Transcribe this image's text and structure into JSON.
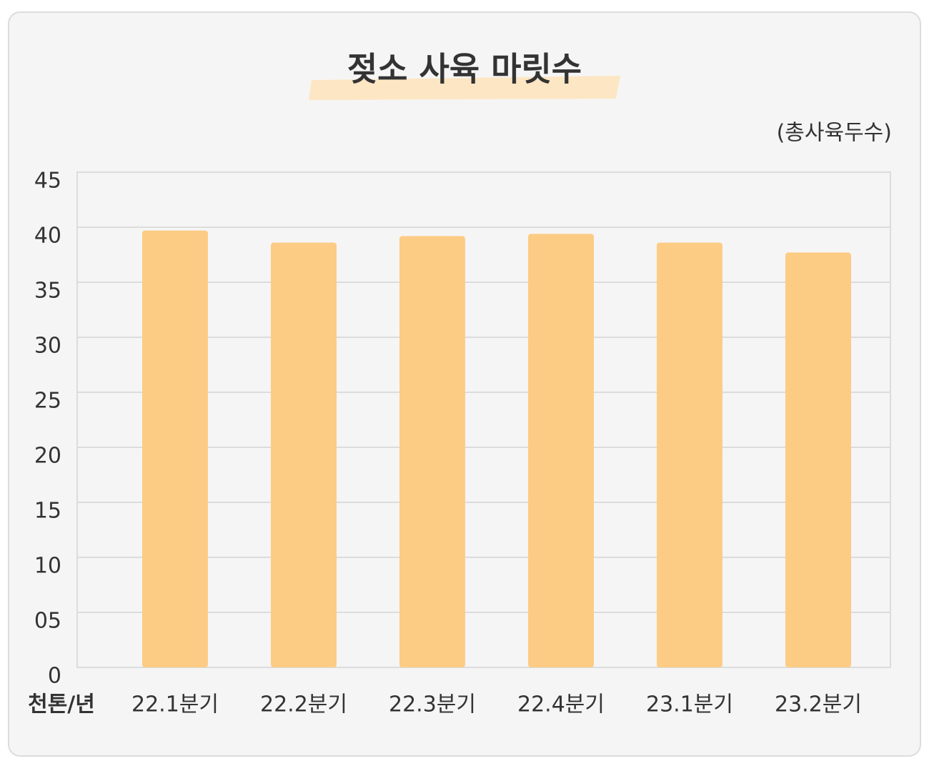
{
  "chart_data": {
    "type": "bar",
    "title": "젖소 사육 마릿수",
    "unit_label": "(총사육두수)",
    "x_label": "천톤/년",
    "categories": [
      "22.1분기",
      "22.2분기",
      "22.3분기",
      "22.4분기",
      "23.1분기",
      "23.2분기"
    ],
    "values": [
      39.7,
      38.6,
      39.2,
      39.4,
      38.6,
      37.7
    ],
    "color": "#fccc85",
    "ylim": [
      0,
      45
    ],
    "yticks": [
      0,
      {
        "value": 5,
        "label": "05"
      },
      10,
      15,
      20,
      25,
      30,
      35,
      40,
      45
    ],
    "grid": true
  }
}
